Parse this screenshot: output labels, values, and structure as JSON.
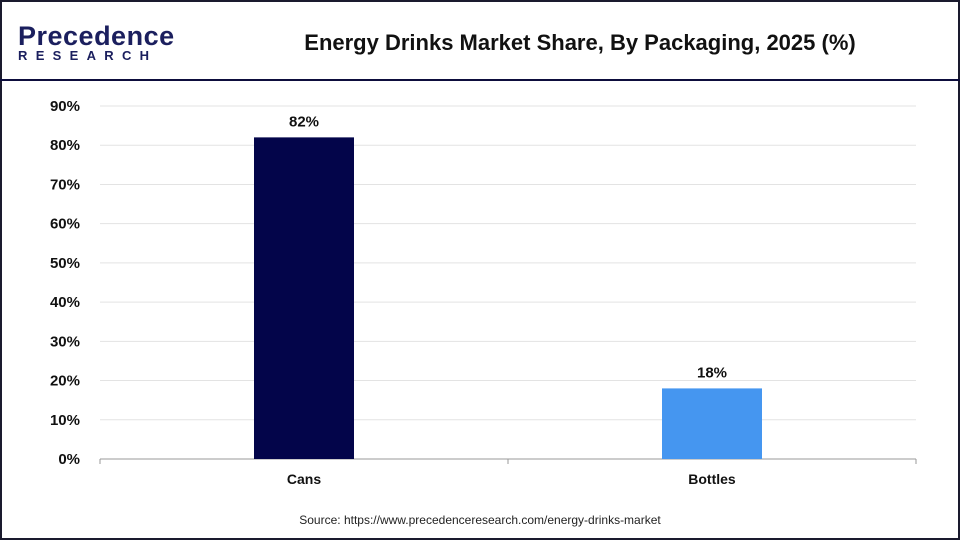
{
  "logo": {
    "line1": "Precedence",
    "line2": "RESEARCH"
  },
  "title": "Energy Drinks Market Share, By Packaging, 2025 (%)",
  "source": "Source: https://www.precedenceresearch.com/energy-drinks-market",
  "chart_data": {
    "type": "bar",
    "title": "Energy Drinks Market Share, By Packaging, 2025 (%)",
    "categories": [
      "Cans",
      "Bottles"
    ],
    "values": [
      82,
      18
    ],
    "data_labels": [
      "82%",
      "18%"
    ],
    "colors": [
      "#03054a",
      "#4596f0"
    ],
    "ylim": [
      0,
      90
    ],
    "yticks": [
      "0%",
      "10%",
      "20%",
      "30%",
      "40%",
      "50%",
      "60%",
      "70%",
      "80%",
      "90%"
    ],
    "grid": true,
    "xlabel": "",
    "ylabel": ""
  }
}
